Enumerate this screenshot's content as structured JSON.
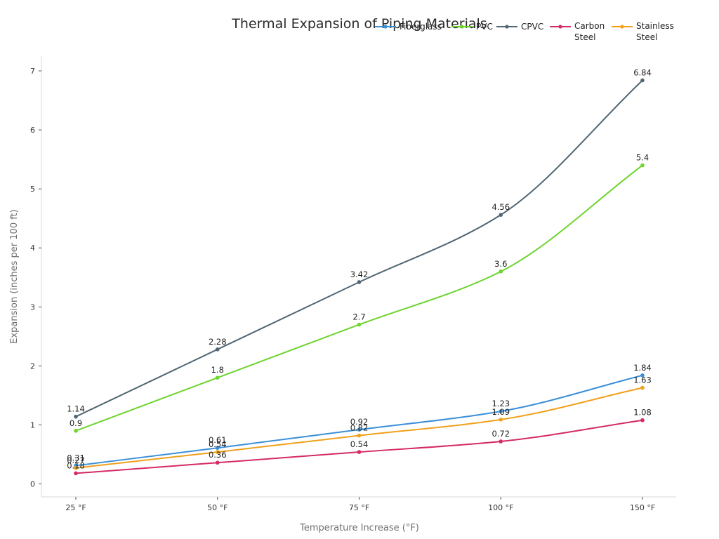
{
  "chart_data": {
    "type": "line",
    "title": "Thermal Expansion of Piping Materials",
    "xlabel": "Temperature Increase (°F)",
    "ylabel": "Expansion (inches per 100 ft)",
    "categories": [
      "25 °F",
      "50 °F",
      "75 °F",
      "100 °F",
      "150 °F"
    ],
    "ylim": [
      -0.22,
      7.25
    ],
    "yticks": [
      0,
      1,
      2,
      3,
      4,
      5,
      6,
      7
    ],
    "grid": false,
    "legend_position": "top-right",
    "series": [
      {
        "name": "Fiberglass",
        "legend_lines": [
          "Fiberglass"
        ],
        "color": "#3a8fd9",
        "values": [
          0.31,
          0.61,
          0.92,
          1.23,
          1.84
        ]
      },
      {
        "name": "PVC",
        "legend_lines": [
          "PVC"
        ],
        "color": "#6cd42c",
        "values": [
          0.9,
          1.8,
          2.7,
          3.6,
          5.4
        ]
      },
      {
        "name": "CPVC",
        "legend_lines": [
          "CPVC"
        ],
        "color": "#506672",
        "values": [
          1.14,
          2.28,
          3.42,
          4.56,
          6.84
        ]
      },
      {
        "name": "Carbon Steel",
        "legend_lines": [
          "Carbon",
          "Steel"
        ],
        "color": "#d42a66",
        "values": [
          0.18,
          0.36,
          0.54,
          0.72,
          1.08
        ]
      },
      {
        "name": "Stainless Steel",
        "legend_lines": [
          "Stainless",
          "Steel"
        ],
        "color": "#f0a01c",
        "values": [
          0.27,
          0.54,
          0.82,
          1.09,
          1.63
        ]
      }
    ]
  }
}
